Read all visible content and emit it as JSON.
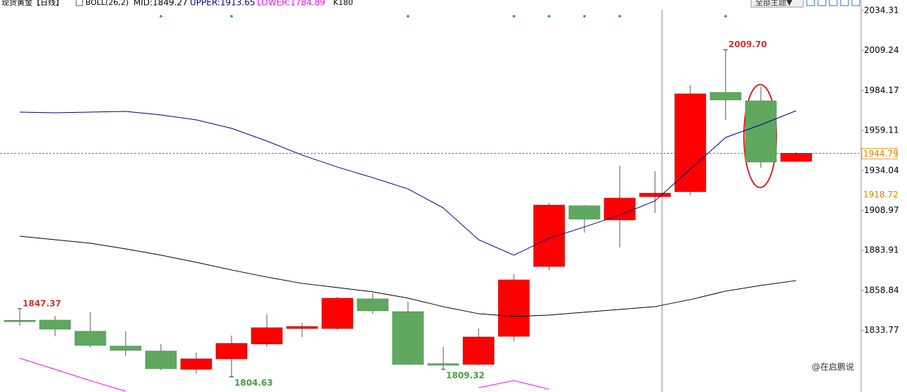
{
  "chart_data": {
    "type": "candlestick",
    "title": "现货黄金【日线】",
    "indicator": "BOLL(26,2)",
    "period": "K180",
    "theme_button": "全部主题▼",
    "watermark": "@在启鹏说",
    "up_color": "#ff0000",
    "down_color": "#60a860",
    "ylim": [
      1795.1,
      2040.94
    ],
    "yticks": [
      2034.31,
      2009.24,
      1984.17,
      1959.11,
      1934.04,
      1908.97,
      1883.91,
      1858.84,
      1833.77
    ],
    "price_markers": [
      1944.79,
      1918.72
    ],
    "candles": {
      "open": [
        1840.1,
        1840.2,
        1833.2,
        1823.9,
        1820.8,
        1809.3,
        1815.9,
        1825.2,
        1834.9,
        1834.9,
        1853.5,
        1845.5,
        1812.9,
        1812.4,
        1830.0,
        1873.8,
        1911.9,
        1903.0,
        1917.6,
        1920.7,
        1983.0,
        1977.7,
        1939.7
      ],
      "high": [
        1847.37,
        1842.9,
        1845.1,
        1833.2,
        1825.2,
        1819.9,
        1830.5,
        1843.8,
        1838.5,
        1854.8,
        1857.0,
        1851.7,
        1823.4,
        1834.9,
        1869.0,
        1913.6,
        1912.3,
        1937.1,
        1933.5,
        1987.4,
        2009.7,
        1986.6,
        1945.5
      ],
      "low": [
        1836.7,
        1830.1,
        1823.0,
        1817.7,
        1808.8,
        1806.6,
        1804.63,
        1823.4,
        1829.6,
        1834.0,
        1844.2,
        1811.9,
        1809.32,
        1811.9,
        1826.9,
        1871.2,
        1895.1,
        1885.8,
        1907.4,
        1918.5,
        1965.8,
        1935.7,
        1939.3
      ],
      "close": [
        1839.6,
        1834.5,
        1824.3,
        1821.2,
        1809.7,
        1815.9,
        1825.6,
        1835.4,
        1836.2,
        1853.9,
        1846.0,
        1812.4,
        1811.9,
        1829.6,
        1865.4,
        1912.3,
        1903.5,
        1916.7,
        1919.8,
        1982.1,
        1978.2,
        1939.3,
        1944.79
      ]
    },
    "annotations": [
      {
        "value": 1847.37,
        "label": "1847.37"
      },
      {
        "value": 1804.63,
        "label": "1804.63"
      },
      {
        "value": 1809.32,
        "label": "1809.32"
      },
      {
        "value": 2009.7,
        "label": "2009.70"
      }
    ],
    "series": [
      {
        "name": "MID:1849.27",
        "color": "#000000",
        "values": [
          1892.84,
          1890.63,
          1888.42,
          1884.88,
          1880.91,
          1876.48,
          1871.62,
          1867.2,
          1863.22,
          1860.57,
          1857.92,
          1853.94,
          1848.63,
          1844.21,
          1842.44,
          1843.33,
          1845.1,
          1846.87,
          1848.63,
          1853.05,
          1858.36,
          1861.9,
          1864.99
        ]
      },
      {
        "name": "UPPER:1913.65",
        "color": "#000080",
        "values": [
          1970.65,
          1970.21,
          1970.65,
          1971.09,
          1968.88,
          1965.79,
          1960.48,
          1952.52,
          1943.68,
          1936.17,
          1929.54,
          1922.46,
          1910.53,
          1890.63,
          1880.91,
          1891.52,
          1898.59,
          1906.11,
          1914.95,
          1934.84,
          1954.73,
          1962.69,
          1971.53
        ]
      },
      {
        "name": "LOWER:1784.89",
        "color": "#ff00ff",
        "values": [
          1816.3,
          1809.3,
          1802.2,
          1795.6,
          null,
          null,
          null,
          null,
          null,
          null,
          null,
          null,
          null,
          1797.8,
          1802.2,
          1796.9,
          null,
          null,
          null,
          null,
          null,
          null,
          null
        ]
      }
    ]
  }
}
